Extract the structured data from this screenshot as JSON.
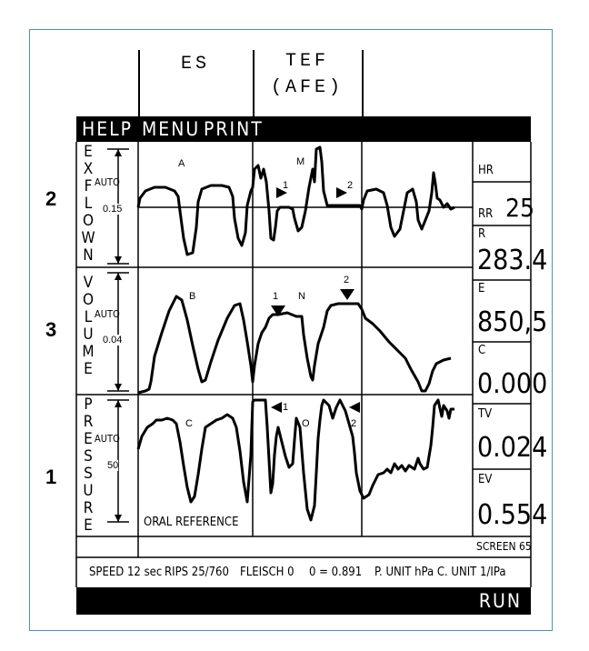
{
  "header": {
    "col1": "ES",
    "col2_line1": "TEF",
    "col2_line2": "(AFE)"
  },
  "menu": {
    "help": "HELP",
    "menu": "MENU",
    "print": "PRINT"
  },
  "rows": [
    {
      "number": "2",
      "letters": [
        "E",
        "X",
        "F",
        "L",
        "O",
        "W",
        "N"
      ],
      "auto": "AUTO",
      "scale": "0.15"
    },
    {
      "number": "3",
      "letters": [
        "V",
        "O",
        "L",
        "U",
        "M",
        "E"
      ],
      "auto": "AUTO",
      "scale": "0.04"
    },
    {
      "number": "1",
      "letters": [
        "P",
        "R",
        "E",
        "S",
        "S",
        "U",
        "R",
        "E"
      ],
      "auto": "AUTO",
      "scale": "50"
    }
  ],
  "markers": {
    "A": "A",
    "M": "M",
    "m1": "1",
    "m2": "2",
    "B": "B",
    "N": "N",
    "n1": "1",
    "n2": "2",
    "C": "C",
    "O": "O",
    "o1": "1",
    "o2": "2"
  },
  "oral_reference": "ORAL REFERENCE",
  "readouts": {
    "hr_label": "HR",
    "rr_label": "RR",
    "rr_value": "25",
    "r_label": "R",
    "r_value": "283.4",
    "e_label": "E",
    "e_value": "850,5",
    "c_label": "C",
    "c_value": "0.000",
    "tv_label": "TV",
    "tv_value": "0.024",
    "ev_label": "EV",
    "ev_value": "0.554"
  },
  "screen": "SCREEN 65",
  "status": {
    "speed": "SPEED 12 sec",
    "rips": "RIPS 25/760",
    "fleisch": "FLEISCH 0",
    "theta": "0 = 0.891",
    "units": "P. UNIT hPa C. UNIT 1/IPa"
  },
  "run": "RUN"
}
